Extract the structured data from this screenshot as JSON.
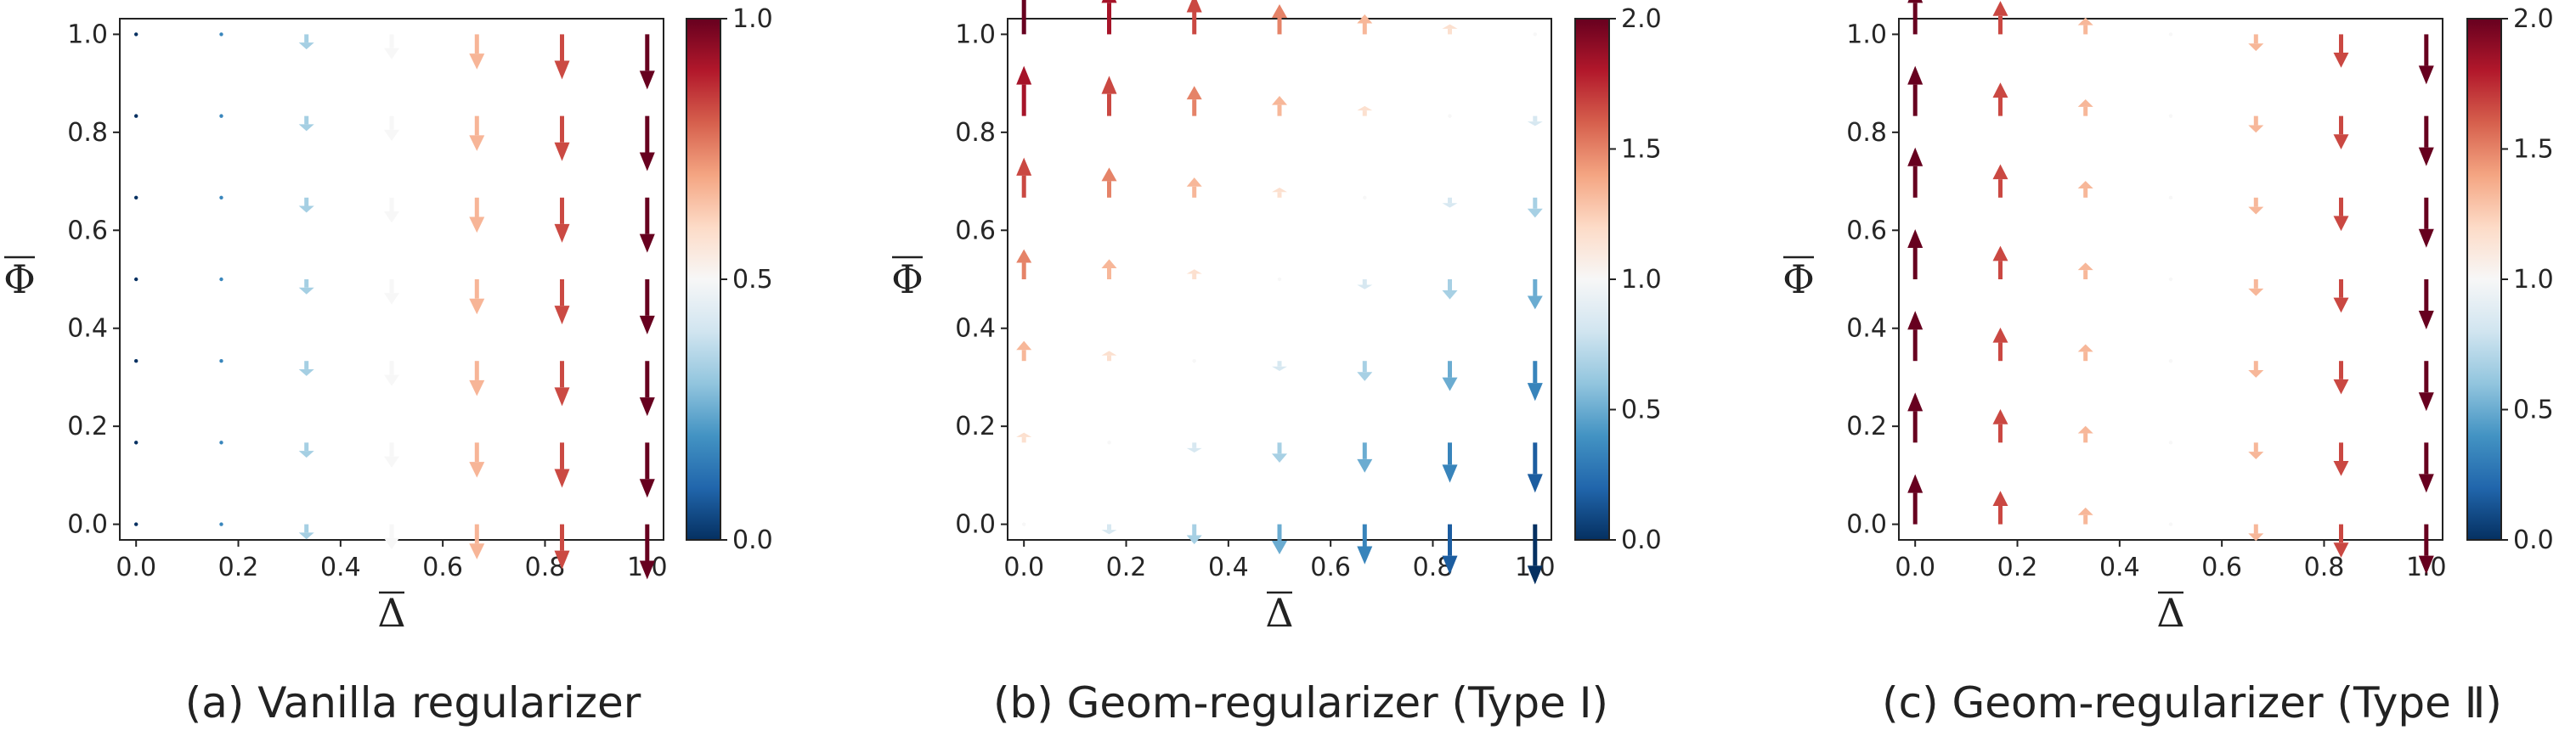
{
  "chart_data": [
    {
      "type": "quiver",
      "caption": "(a)  Vanilla regularizer",
      "xlabel": "Δ",
      "ylabel": "Φ",
      "xlim": [
        0.0,
        1.0
      ],
      "ylim": [
        0.0,
        1.0
      ],
      "xticks": [
        "0.0",
        "0.2",
        "0.4",
        "0.6",
        "0.8",
        "1.0"
      ],
      "yticks": [
        "0.0",
        "0.2",
        "0.4",
        "0.6",
        "0.8",
        "1.0"
      ],
      "colorbar": {
        "min": 0.0,
        "max": 1.0,
        "ticks": [
          "0.0",
          "0.5",
          "1.0"
        ],
        "colormap": "RdBu_r"
      },
      "grid_x": [
        0.0,
        0.1667,
        0.3333,
        0.5,
        0.6667,
        0.8333,
        1.0
      ],
      "grid_y": [
        0.0,
        0.1667,
        0.3333,
        0.5,
        0.6667,
        0.8333,
        1.0
      ],
      "column_vectors": [
        {
          "x": 0.0,
          "u": 0,
          "v": 0.0,
          "magnitude": 0.0
        },
        {
          "x": 0.1667,
          "u": 0,
          "v": -0.01,
          "magnitude": 0.17
        },
        {
          "x": 0.3333,
          "u": 0,
          "v": -0.03,
          "magnitude": 0.33
        },
        {
          "x": 0.5,
          "u": 0,
          "v": -0.05,
          "magnitude": 0.5
        },
        {
          "x": 0.6667,
          "u": 0,
          "v": -0.07,
          "magnitude": 0.67
        },
        {
          "x": 0.8333,
          "u": 0,
          "v": -0.09,
          "magnitude": 0.83
        },
        {
          "x": 1.0,
          "u": 0,
          "v": -0.11,
          "magnitude": 1.0
        }
      ]
    },
    {
      "type": "quiver",
      "caption": "(b)  Geom-regularizer   (Type Ⅰ)",
      "xlabel": "Δ",
      "ylabel": "Φ",
      "xlim": [
        0.0,
        1.0
      ],
      "ylim": [
        0.0,
        1.0
      ],
      "xticks": [
        "0.0",
        "0.2",
        "0.4",
        "0.6",
        "0.8",
        "1.0"
      ],
      "yticks": [
        "0.0",
        "0.2",
        "0.4",
        "0.6",
        "0.8",
        "1.0"
      ],
      "colorbar": {
        "min": 0.0,
        "max": 2.0,
        "ticks": [
          "0.0",
          "0.5",
          "1.0",
          "1.5",
          "2.0"
        ],
        "colormap": "RdBu_r"
      },
      "grid_x": [
        0.0,
        0.1667,
        0.3333,
        0.5,
        0.6667,
        0.8333,
        1.0
      ],
      "grid_y": [
        0.0,
        0.1667,
        0.3333,
        0.5,
        0.6667,
        0.8333,
        1.0
      ],
      "field": "v = Φ - Δ, magnitude = 1 + Φ - Δ"
    },
    {
      "type": "quiver",
      "caption": "(c)  Geom-regularizer   (Type Ⅱ)",
      "xlabel": "Δ",
      "ylabel": "Φ",
      "xlim": [
        0.0,
        1.0
      ],
      "ylim": [
        0.0,
        1.0
      ],
      "xticks": [
        "0.0",
        "0.2",
        "0.4",
        "0.6",
        "0.8",
        "1.0"
      ],
      "yticks": [
        "0.0",
        "0.2",
        "0.4",
        "0.6",
        "0.8",
        "1.0"
      ],
      "colorbar": {
        "min": 0.0,
        "max": 2.0,
        "ticks": [
          "0.0",
          "0.5",
          "1.0",
          "1.5",
          "2.0"
        ],
        "colormap": "RdBu_r"
      },
      "grid_x": [
        0.0,
        0.1667,
        0.3333,
        0.5,
        0.6667,
        0.8333,
        1.0
      ],
      "grid_y": [
        0.0,
        0.1667,
        0.3333,
        0.5,
        0.6667,
        0.8333,
        1.0
      ],
      "field": "v = 1 - 2Δ, magnitude = 1 + |1 - 2Δ|"
    }
  ]
}
